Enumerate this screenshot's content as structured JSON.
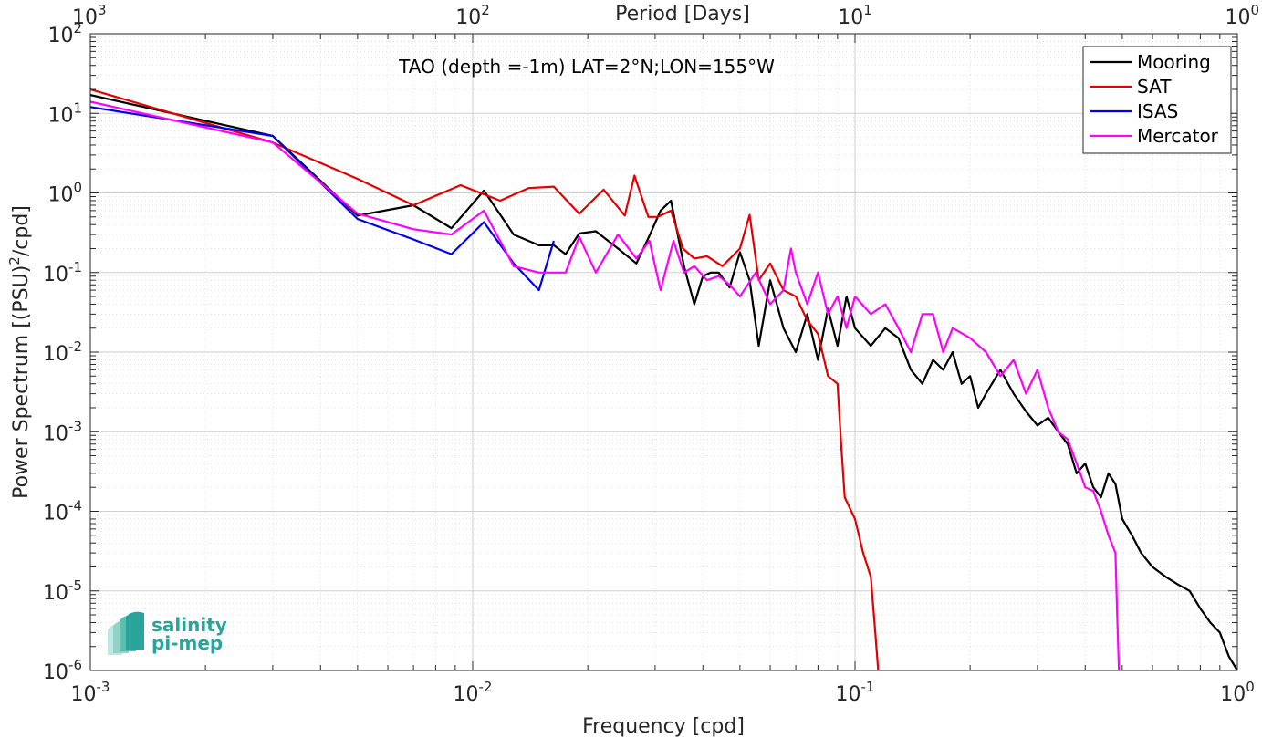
{
  "chart_data": {
    "type": "line",
    "title": "",
    "annotation": "TAO (depth =-1m) LAT=2°N;LON=155°W",
    "xlabel": "Frequency [cpd]",
    "ylabel": "Power Spectrum [(PSU)",
    "ylabel_sup": "2",
    "ylabel_tail": "/cpd]",
    "top_xlabel": "Period [Days]",
    "x_scale": "log",
    "y_scale": "log",
    "xlim": [
      0.001,
      1
    ],
    "ylim": [
      1e-06,
      100
    ],
    "grid": true,
    "legend_position": "top-right",
    "x_ticks": [
      {
        "value": 0.001,
        "base": "10",
        "exp": "-3"
      },
      {
        "value": 0.01,
        "base": "10",
        "exp": "-2"
      },
      {
        "value": 0.1,
        "base": "10",
        "exp": "-1"
      },
      {
        "value": 1,
        "base": "10",
        "exp": "0"
      }
    ],
    "y_ticks": [
      {
        "value": 100,
        "base": "10",
        "exp": "2"
      },
      {
        "value": 10,
        "base": "10",
        "exp": "1"
      },
      {
        "value": 1,
        "base": "10",
        "exp": "0"
      },
      {
        "value": 0.1,
        "base": "10",
        "exp": "-1"
      },
      {
        "value": 0.01,
        "base": "10",
        "exp": "-2"
      },
      {
        "value": 0.001,
        "base": "10",
        "exp": "-3"
      },
      {
        "value": 0.0001,
        "base": "10",
        "exp": "-4"
      },
      {
        "value": 1e-05,
        "base": "10",
        "exp": "-5"
      },
      {
        "value": 1e-06,
        "base": "10",
        "exp": "-6"
      }
    ],
    "top_ticks": [
      {
        "value": 0.001,
        "base": "10",
        "exp": "3"
      },
      {
        "value": 0.01,
        "base": "10",
        "exp": "2"
      },
      {
        "value": 0.1,
        "base": "10",
        "exp": "1"
      },
      {
        "value": 1,
        "base": "10",
        "exp": "0"
      }
    ],
    "series": [
      {
        "name": "Mooring",
        "color": "#000000",
        "x": [
          0.001,
          0.003,
          0.005,
          0.007,
          0.0088,
          0.0107,
          0.0128,
          0.0149,
          0.0163,
          0.0175,
          0.019,
          0.021,
          0.024,
          0.0268,
          0.029,
          0.031,
          0.033,
          0.0357,
          0.038,
          0.04,
          0.042,
          0.044,
          0.047,
          0.05,
          0.053,
          0.056,
          0.06,
          0.065,
          0.07,
          0.075,
          0.08,
          0.085,
          0.09,
          0.095,
          0.1,
          0.11,
          0.12,
          0.13,
          0.14,
          0.15,
          0.16,
          0.17,
          0.18,
          0.19,
          0.2,
          0.21,
          0.22,
          0.24,
          0.26,
          0.28,
          0.3,
          0.32,
          0.34,
          0.36,
          0.38,
          0.4,
          0.42,
          0.44,
          0.46,
          0.48,
          0.5,
          0.53,
          0.56,
          0.6,
          0.65,
          0.7,
          0.75,
          0.8,
          0.85,
          0.9,
          0.95,
          1.0
        ],
        "y": [
          17,
          5.2,
          0.52,
          0.7,
          0.36,
          1.07,
          0.3,
          0.22,
          0.22,
          0.17,
          0.31,
          0.33,
          0.2,
          0.13,
          0.29,
          0.6,
          0.8,
          0.12,
          0.04,
          0.09,
          0.1,
          0.1,
          0.065,
          0.18,
          0.08,
          0.012,
          0.08,
          0.02,
          0.01,
          0.03,
          0.008,
          0.035,
          0.012,
          0.05,
          0.02,
          0.012,
          0.02,
          0.015,
          0.006,
          0.004,
          0.008,
          0.006,
          0.01,
          0.004,
          0.005,
          0.002,
          0.003,
          0.006,
          0.003,
          0.0018,
          0.0012,
          0.0015,
          0.001,
          0.0007,
          0.0003,
          0.0004,
          0.0002,
          0.00015,
          0.0003,
          0.00022,
          8e-05,
          5e-05,
          3e-05,
          2e-05,
          1.5e-05,
          1.2e-05,
          1e-05,
          6e-06,
          4e-06,
          3e-06,
          1.5e-06,
          1e-06
        ]
      },
      {
        "name": "SAT",
        "color": "#e30000",
        "x": [
          0.001,
          0.003,
          0.005,
          0.007,
          0.0093,
          0.0118,
          0.014,
          0.0163,
          0.019,
          0.022,
          0.025,
          0.0265,
          0.0288,
          0.0305,
          0.033,
          0.0355,
          0.038,
          0.041,
          0.045,
          0.05,
          0.053,
          0.056,
          0.06,
          0.065,
          0.07,
          0.075,
          0.08,
          0.085,
          0.09,
          0.092,
          0.094,
          0.1,
          0.105,
          0.11,
          0.113,
          0.115
        ],
        "y": [
          20,
          4.3,
          1.5,
          0.7,
          1.25,
          0.8,
          1.15,
          1.2,
          0.55,
          1.1,
          0.52,
          1.65,
          0.5,
          0.5,
          0.6,
          0.2,
          0.15,
          0.16,
          0.12,
          0.2,
          0.53,
          0.08,
          0.13,
          0.06,
          0.05,
          0.025,
          0.017,
          0.005,
          0.004,
          0.0007,
          0.00015,
          8e-05,
          3e-05,
          1.5e-05,
          3e-06,
          1e-06
        ]
      },
      {
        "name": "ISAS",
        "color": "#0000e6",
        "x": [
          0.001,
          0.003,
          0.005,
          0.007,
          0.0088,
          0.0107,
          0.0128,
          0.0149,
          0.0163
        ],
        "y": [
          12,
          5.2,
          0.47,
          0.26,
          0.17,
          0.43,
          0.13,
          0.06,
          0.25
        ]
      },
      {
        "name": "Mercator",
        "color": "#ff00ff",
        "x": [
          0.001,
          0.003,
          0.005,
          0.007,
          0.0088,
          0.0107,
          0.0128,
          0.0149,
          0.0163,
          0.0175,
          0.019,
          0.021,
          0.024,
          0.0268,
          0.029,
          0.031,
          0.0335,
          0.0357,
          0.038,
          0.041,
          0.044,
          0.047,
          0.05,
          0.055,
          0.06,
          0.065,
          0.068,
          0.07,
          0.075,
          0.08,
          0.085,
          0.09,
          0.095,
          0.1,
          0.11,
          0.12,
          0.13,
          0.14,
          0.15,
          0.16,
          0.17,
          0.18,
          0.2,
          0.22,
          0.24,
          0.26,
          0.28,
          0.3,
          0.32,
          0.34,
          0.36,
          0.38,
          0.4,
          0.42,
          0.44,
          0.46,
          0.48,
          0.485,
          0.49
        ],
        "y": [
          14,
          4.3,
          0.55,
          0.35,
          0.3,
          0.6,
          0.12,
          0.1,
          0.1,
          0.1,
          0.28,
          0.1,
          0.3,
          0.15,
          0.25,
          0.06,
          0.25,
          0.1,
          0.12,
          0.08,
          0.09,
          0.07,
          0.05,
          0.1,
          0.04,
          0.06,
          0.2,
          0.1,
          0.04,
          0.1,
          0.03,
          0.05,
          0.02,
          0.05,
          0.03,
          0.04,
          0.02,
          0.01,
          0.03,
          0.03,
          0.01,
          0.02,
          0.015,
          0.01,
          0.005,
          0.008,
          0.003,
          0.006,
          0.002,
          0.001,
          0.0008,
          0.0004,
          0.0002,
          0.00018,
          0.0001,
          5e-05,
          3e-05,
          5e-06,
          1e-06
        ]
      }
    ]
  },
  "logo": {
    "line1": "salinity",
    "line2": "pi-mep"
  }
}
